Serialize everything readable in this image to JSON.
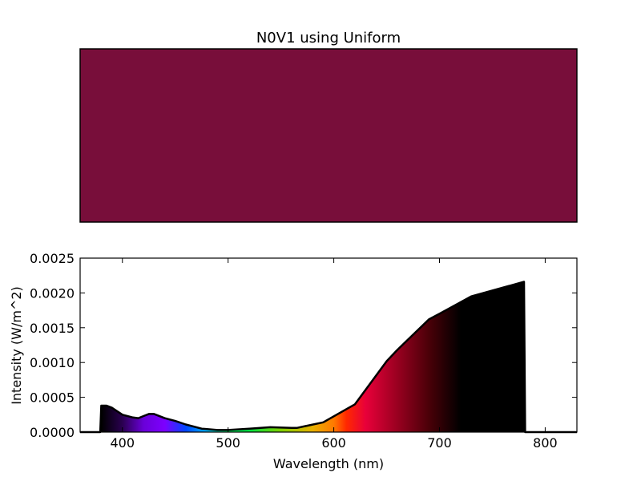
{
  "chart_data": [
    {
      "type": "swatch",
      "title": "N0V1 using Uniform",
      "color": "#780e3a"
    },
    {
      "type": "area",
      "xlabel": "Wavelength (nm)",
      "ylabel": "Intensity (W/m^2)",
      "xlim": [
        360,
        830
      ],
      "ylim": [
        0,
        0.0025
      ],
      "xticks": [
        "400",
        "500",
        "600",
        "700",
        "800"
      ],
      "xtick_values": [
        400,
        500,
        600,
        700,
        800
      ],
      "yticks": [
        "0.0000",
        "0.0005",
        "0.0010",
        "0.0015",
        "0.0020",
        "0.0025"
      ],
      "ytick_values": [
        0,
        0.0005,
        0.001,
        0.0015,
        0.002,
        0.0025
      ],
      "fill": "visible-spectrum gradient",
      "series": [
        {
          "x": [
            360,
            379,
            380,
            385,
            390,
            400,
            410,
            415,
            420,
            425,
            430,
            440,
            450,
            460,
            475,
            490,
            500,
            520,
            540,
            560,
            565,
            590,
            620,
            650,
            660,
            690,
            700,
            730,
            780,
            781,
            830
          ],
          "y": [
            0,
            0,
            0.00038,
            0.00038,
            0.00035,
            0.00025,
            0.00021,
            0.0002,
            0.00023,
            0.00026,
            0.00026,
            0.0002,
            0.00016,
            0.00011,
            5e-05,
            3e-05,
            3e-05,
            5e-05,
            7e-05,
            6e-05,
            6e-05,
            0.00014,
            0.0004,
            0.00102,
            0.00118,
            0.00162,
            0.0017,
            0.00195,
            0.00216,
            0,
            0
          ]
        }
      ]
    }
  ]
}
